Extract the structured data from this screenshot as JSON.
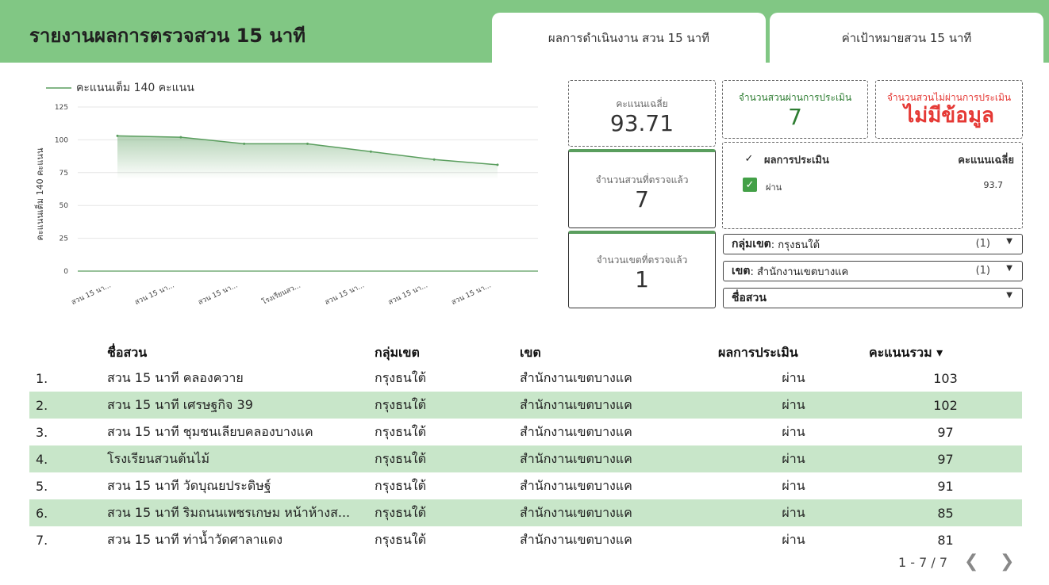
{
  "header": {
    "title": "รายงานผลการตรวจสวน 15 นาที",
    "tabs": [
      {
        "label": "ผลการดำเนินงาน สวน 15 นาที"
      },
      {
        "label": "ค่าเป้าหมายสวน 15 นาที"
      }
    ]
  },
  "colors": {
    "header": "#81c784",
    "accent": "#5a9e5e",
    "pass_green": "#2e7d32",
    "fail_red": "#e53935",
    "row_alt": "#c8e6c9"
  },
  "chart_data": {
    "type": "area",
    "legend": "คะแนนเต็ม 140 คะแนน",
    "ylabel": "คะแนนเต็ม 140 คะแนน",
    "ylim": [
      0,
      125
    ],
    "yticks": [
      0,
      25,
      50,
      75,
      100,
      125
    ],
    "categories": [
      "สวน 15 นา...",
      "สวน 15 นา...",
      "สวน 15 นา...",
      "โรงเรียนสว...",
      "สวน 15 นา...",
      "สวน 15 นา...",
      "สวน 15 นา..."
    ],
    "series": [
      {
        "name": "คะแนนเต็ม 140 คะแนน",
        "values": [
          103,
          102,
          97,
          97,
          91,
          85,
          81
        ]
      }
    ],
    "grid": true,
    "legend_position": "top-left"
  },
  "scorecards": {
    "avg": {
      "label": "คะแนนเฉลี่ย",
      "value": "93.71"
    },
    "passed": {
      "label": "จำนวนสวนผ่านการประเมิน",
      "value": "7"
    },
    "failed": {
      "label": "จำนวนสวนไม่ผ่านการประเมิน",
      "value": "ไม่มีข้อมูล"
    },
    "parks": {
      "label": "จำนวนสวนที่ตรวจแล้ว",
      "value": "7"
    },
    "districts": {
      "label": "จำนวนเขตที่ตรวจแล้ว",
      "value": "1"
    }
  },
  "result_filter": {
    "col1": "ผลการประเมิน",
    "col2": "คะแนนเฉลี่ย",
    "rows": [
      {
        "label": "ผ่าน",
        "value": "93.7"
      }
    ]
  },
  "filters": {
    "group": {
      "label": "กลุ่มเขต",
      "value": ": กรุงธนใต้",
      "count": "(1)"
    },
    "district": {
      "label": "เขต",
      "value": ": สำนักงานเขตบางแค",
      "count": "(1)"
    },
    "park": {
      "label": "ชื่อสวน"
    }
  },
  "table": {
    "headers": [
      "ชื่อสวน",
      "กลุ่มเขต",
      "เขต",
      "ผลการประเมิน",
      "คะแนนรวม ▾"
    ],
    "rows": [
      [
        "1.",
        "สวน 15 นาที คลองควาย",
        "กรุงธนใต้",
        "สำนักงานเขตบางแค",
        "ผ่าน",
        "103"
      ],
      [
        "2.",
        "สวน 15 นาที เศรษฐกิจ 39",
        "กรุงธนใต้",
        "สำนักงานเขตบางแค",
        "ผ่าน",
        "102"
      ],
      [
        "3.",
        "สวน 15 นาที ชุมชนเลียบคลองบางแค",
        "กรุงธนใต้",
        "สำนักงานเขตบางแค",
        "ผ่าน",
        "97"
      ],
      [
        "4.",
        "โรงเรียนสวนต้นไม้",
        "กรุงธนใต้",
        "สำนักงานเขตบางแค",
        "ผ่าน",
        "97"
      ],
      [
        "5.",
        "สวน 15 นาที วัดบุณยประดิษฐ์",
        "กรุงธนใต้",
        "สำนักงานเขตบางแค",
        "ผ่าน",
        "91"
      ],
      [
        "6.",
        "สวน 15 นาที ริมถนนเพชรเกษม หน้าห้างส...",
        "กรุงธนใต้",
        "สำนักงานเขตบางแค",
        "ผ่าน",
        "85"
      ],
      [
        "7.",
        "สวน 15 นาที ท่าน้ำวัดศาลาแดง",
        "กรุงธนใต้",
        "สำนักงานเขตบางแค",
        "ผ่าน",
        "81"
      ]
    ],
    "pagination": "1 - 7 / 7"
  }
}
